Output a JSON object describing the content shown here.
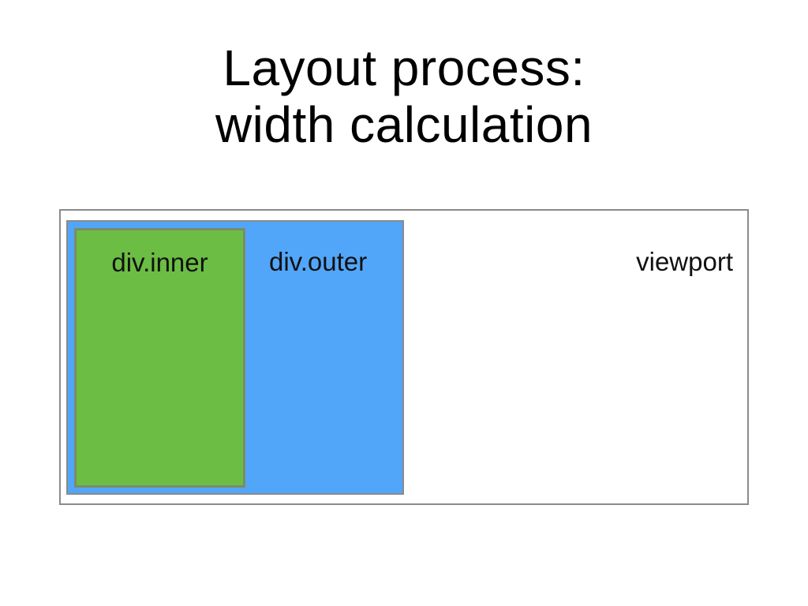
{
  "title": {
    "line1": "Layout process:",
    "line2": "width calculation"
  },
  "boxes": {
    "viewport": {
      "label": "viewport"
    },
    "outer": {
      "label": "div.outer",
      "color": "#52a6fa"
    },
    "inner": {
      "label": "div.inner",
      "color": "#6cbd44"
    }
  }
}
